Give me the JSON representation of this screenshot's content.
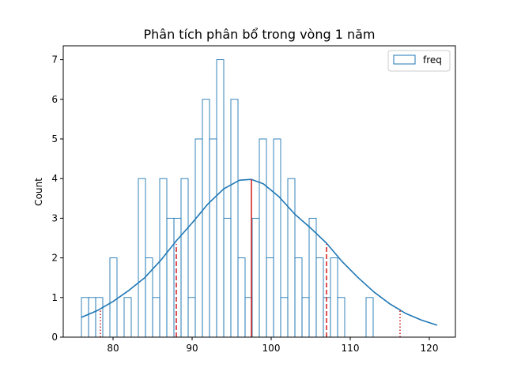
{
  "chart_data": {
    "type": "bar",
    "title": "Phân tích phân bổ trong vòng 1 năm",
    "xlabel": "",
    "ylabel": "Count",
    "xlim": [
      73.7,
      123.3
    ],
    "ylim": [
      0,
      7.35
    ],
    "xticks": [
      80,
      90,
      100,
      110,
      120
    ],
    "yticks": [
      0,
      1,
      2,
      3,
      4,
      5,
      6,
      7
    ],
    "grid": false,
    "legend": {
      "position": "top-right",
      "entries": [
        {
          "name": "freq"
        }
      ]
    },
    "bins": {
      "start": 76.0,
      "width": 0.9
    },
    "series": [
      {
        "name": "freq",
        "counts": [
          1,
          1,
          1,
          0,
          2,
          0,
          1,
          0,
          4,
          2,
          1,
          4,
          3,
          3,
          4,
          1,
          5,
          6,
          5,
          7,
          3,
          6,
          2,
          1,
          3,
          5,
          2,
          5,
          1,
          4,
          2,
          1,
          3,
          2,
          1,
          2,
          1,
          0,
          0,
          0,
          1
        ],
        "edgecolor": "#1f77b4",
        "facecolor": "none"
      }
    ],
    "kde": {
      "color": "#1f77b4",
      "x": [
        76.0,
        78.0,
        80.0,
        82.0,
        84.0,
        86.0,
        88.0,
        90.0,
        92.0,
        94.0,
        96.0,
        97.5,
        99.0,
        101.0,
        103.0,
        105.0,
        107.0,
        109.0,
        111.0,
        113.0,
        115.0,
        117.0,
        119.0,
        121.0
      ],
      "y": [
        0.5,
        0.67,
        0.9,
        1.18,
        1.5,
        1.93,
        2.43,
        2.88,
        3.36,
        3.74,
        3.96,
        3.98,
        3.87,
        3.54,
        3.1,
        2.75,
        2.37,
        1.9,
        1.5,
        1.14,
        0.84,
        0.6,
        0.43,
        0.3
      ]
    },
    "vlines": [
      {
        "x": 78.4,
        "ymax": 0.72,
        "style": "dotted",
        "color": "#d62728"
      },
      {
        "x": 88.0,
        "ymax": 2.35,
        "style": "dashed",
        "color": "#d62728"
      },
      {
        "x": 97.5,
        "ymax": 3.98,
        "style": "solid",
        "color": "#d62728"
      },
      {
        "x": 107.0,
        "ymax": 2.35,
        "style": "dashed",
        "color": "#d62728"
      },
      {
        "x": 116.3,
        "ymax": 0.72,
        "style": "dotted",
        "color": "#d62728"
      }
    ]
  }
}
